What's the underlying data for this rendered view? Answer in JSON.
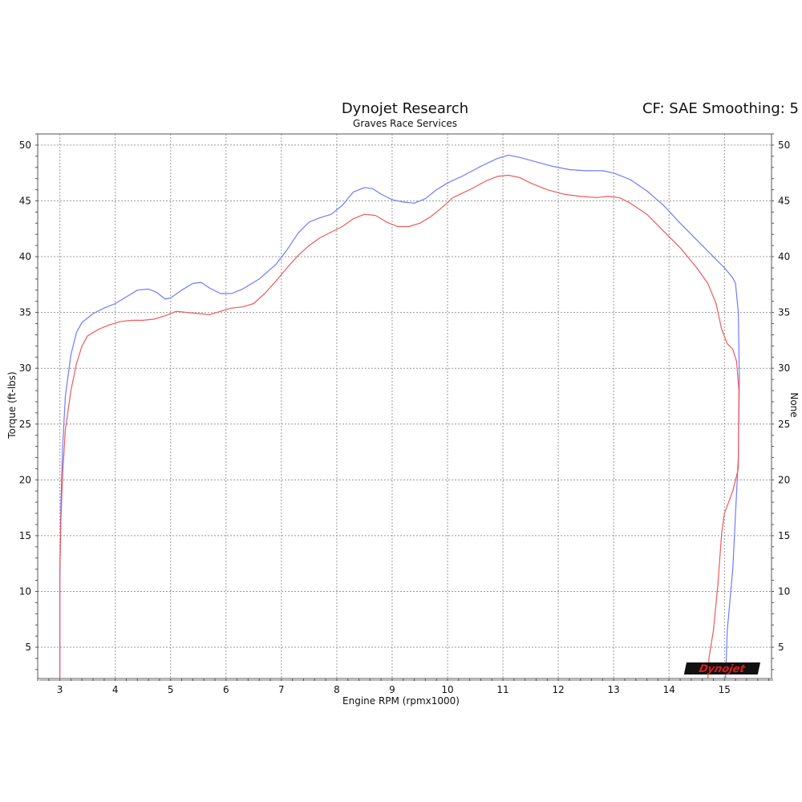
{
  "chart_data": {
    "type": "line",
    "title": "Dynojet Research",
    "subtitle": "Graves Race Services",
    "correction_label": "CF: SAE Smoothing: 5",
    "xlabel": "Engine RPM (rpmx1000)",
    "ylabel": "Torque (ft-lbs)",
    "y2label": "None",
    "xlim": [
      2.6,
      15.85
    ],
    "ylim": [
      2.2,
      51
    ],
    "x_ticks": [
      3,
      4,
      5,
      6,
      7,
      8,
      9,
      10,
      11,
      12,
      13,
      14,
      15
    ],
    "y_ticks": [
      5,
      10,
      15,
      20,
      25,
      30,
      35,
      40,
      45,
      50
    ],
    "grid": true,
    "logo": "Dynojet",
    "colors": {
      "run_blue": "#6f7bff",
      "run_red": "#ee5a5a"
    },
    "series": [
      {
        "color": "#6f7bff",
        "points": [
          [
            3.0,
            2.2
          ],
          [
            3.0,
            11.5
          ],
          [
            3.02,
            18
          ],
          [
            3.05,
            23
          ],
          [
            3.1,
            27.5
          ],
          [
            3.2,
            31.2
          ],
          [
            3.3,
            33.2
          ],
          [
            3.4,
            34.1
          ],
          [
            3.6,
            34.9
          ],
          [
            3.8,
            35.4
          ],
          [
            4.0,
            35.8
          ],
          [
            4.2,
            36.4
          ],
          [
            4.4,
            37.0
          ],
          [
            4.6,
            37.1
          ],
          [
            4.75,
            36.8
          ],
          [
            4.9,
            36.2
          ],
          [
            5.0,
            36.3
          ],
          [
            5.2,
            37.0
          ],
          [
            5.4,
            37.6
          ],
          [
            5.55,
            37.7
          ],
          [
            5.7,
            37.2
          ],
          [
            5.9,
            36.7
          ],
          [
            6.1,
            36.7
          ],
          [
            6.3,
            37.1
          ],
          [
            6.6,
            38.0
          ],
          [
            6.9,
            39.3
          ],
          [
            7.1,
            40.6
          ],
          [
            7.3,
            42.1
          ],
          [
            7.5,
            43.1
          ],
          [
            7.7,
            43.5
          ],
          [
            7.9,
            43.8
          ],
          [
            8.1,
            44.6
          ],
          [
            8.3,
            45.8
          ],
          [
            8.5,
            46.2
          ],
          [
            8.65,
            46.1
          ],
          [
            8.8,
            45.6
          ],
          [
            9.0,
            45.1
          ],
          [
            9.2,
            44.9
          ],
          [
            9.4,
            44.8
          ],
          [
            9.6,
            45.2
          ],
          [
            9.8,
            46.0
          ],
          [
            10.0,
            46.6
          ],
          [
            10.3,
            47.3
          ],
          [
            10.6,
            48.1
          ],
          [
            10.9,
            48.8
          ],
          [
            11.1,
            49.1
          ],
          [
            11.3,
            48.9
          ],
          [
            11.6,
            48.5
          ],
          [
            11.9,
            48.1
          ],
          [
            12.2,
            47.8
          ],
          [
            12.5,
            47.7
          ],
          [
            12.8,
            47.7
          ],
          [
            13.0,
            47.5
          ],
          [
            13.3,
            46.9
          ],
          [
            13.6,
            45.9
          ],
          [
            13.9,
            44.6
          ],
          [
            14.2,
            43.0
          ],
          [
            14.5,
            41.5
          ],
          [
            14.8,
            40.0
          ],
          [
            15.0,
            39.0
          ],
          [
            15.15,
            38.1
          ],
          [
            15.2,
            37.6
          ],
          [
            15.25,
            35.0
          ],
          [
            15.27,
            29.0
          ],
          [
            15.25,
            22.0
          ],
          [
            15.15,
            12.0
          ],
          [
            15.05,
            6.5
          ],
          [
            15.02,
            2.2
          ]
        ]
      },
      {
        "color": "#ee5a5a",
        "points": [
          [
            3.0,
            2.2
          ],
          [
            3.0,
            11.5
          ],
          [
            3.02,
            16.5
          ],
          [
            3.05,
            20.5
          ],
          [
            3.1,
            24.5
          ],
          [
            3.2,
            28.0
          ],
          [
            3.3,
            30.4
          ],
          [
            3.4,
            32.0
          ],
          [
            3.5,
            32.9
          ],
          [
            3.7,
            33.5
          ],
          [
            3.9,
            33.9
          ],
          [
            4.1,
            34.2
          ],
          [
            4.3,
            34.3
          ],
          [
            4.5,
            34.3
          ],
          [
            4.7,
            34.4
          ],
          [
            4.9,
            34.7
          ],
          [
            5.1,
            35.1
          ],
          [
            5.3,
            35.0
          ],
          [
            5.5,
            34.9
          ],
          [
            5.7,
            34.8
          ],
          [
            5.9,
            35.1
          ],
          [
            6.1,
            35.4
          ],
          [
            6.3,
            35.5
          ],
          [
            6.5,
            35.8
          ],
          [
            6.7,
            36.7
          ],
          [
            6.9,
            37.8
          ],
          [
            7.1,
            39.0
          ],
          [
            7.3,
            40.1
          ],
          [
            7.5,
            41.0
          ],
          [
            7.7,
            41.7
          ],
          [
            7.9,
            42.2
          ],
          [
            8.1,
            42.7
          ],
          [
            8.3,
            43.4
          ],
          [
            8.5,
            43.8
          ],
          [
            8.7,
            43.7
          ],
          [
            8.9,
            43.1
          ],
          [
            9.1,
            42.7
          ],
          [
            9.3,
            42.7
          ],
          [
            9.5,
            43.0
          ],
          [
            9.7,
            43.6
          ],
          [
            9.9,
            44.4
          ],
          [
            10.1,
            45.3
          ],
          [
            10.4,
            46.0
          ],
          [
            10.7,
            46.8
          ],
          [
            10.9,
            47.2
          ],
          [
            11.1,
            47.3
          ],
          [
            11.3,
            47.1
          ],
          [
            11.5,
            46.6
          ],
          [
            11.8,
            46.0
          ],
          [
            12.1,
            45.6
          ],
          [
            12.4,
            45.4
          ],
          [
            12.7,
            45.3
          ],
          [
            12.9,
            45.4
          ],
          [
            13.1,
            45.3
          ],
          [
            13.3,
            44.8
          ],
          [
            13.6,
            43.8
          ],
          [
            13.9,
            42.3
          ],
          [
            14.2,
            40.8
          ],
          [
            14.5,
            39.0
          ],
          [
            14.7,
            37.6
          ],
          [
            14.85,
            35.8
          ],
          [
            14.95,
            33.5
          ],
          [
            15.05,
            32.2
          ],
          [
            15.15,
            31.7
          ],
          [
            15.22,
            30.6
          ],
          [
            15.26,
            28.0
          ],
          [
            15.25,
            21.0
          ],
          [
            15.15,
            19.0
          ],
          [
            15.0,
            17.0
          ],
          [
            14.95,
            15.2
          ],
          [
            14.88,
            10.5
          ],
          [
            14.8,
            6.5
          ],
          [
            14.72,
            4.0
          ],
          [
            14.7,
            2.2
          ]
        ]
      }
    ]
  }
}
